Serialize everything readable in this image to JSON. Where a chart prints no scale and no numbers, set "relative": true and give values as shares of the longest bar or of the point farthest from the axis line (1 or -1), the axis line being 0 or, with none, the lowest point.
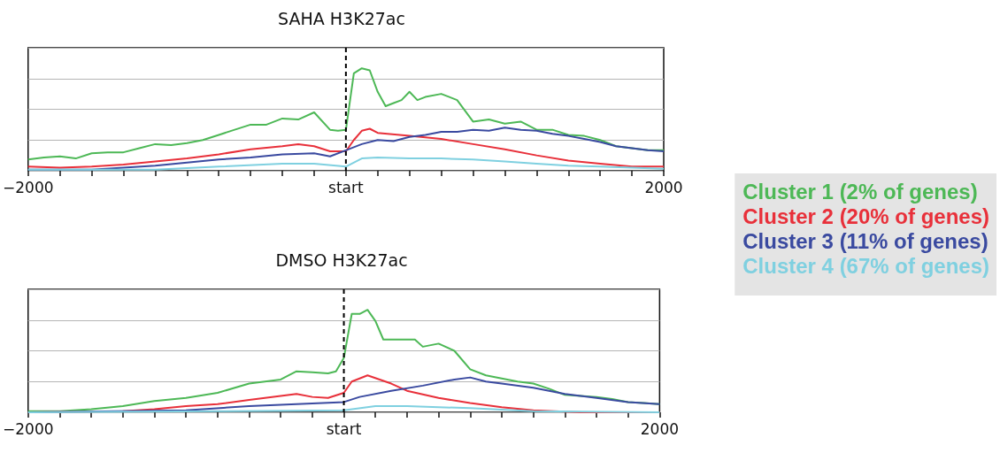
{
  "chart_data": [
    {
      "type": "line",
      "title": "SAHA H3K27ac",
      "relative": true,
      "grid": "y",
      "legend": "right",
      "xlim": [
        -2000,
        2000
      ],
      "xticks": [
        {
          "value": -2000,
          "label": "−2000"
        },
        {
          "value": -1800,
          "label": null
        },
        {
          "value": -1600,
          "label": null
        },
        {
          "value": -1400,
          "label": null
        },
        {
          "value": -1200,
          "label": null
        },
        {
          "value": -1000,
          "label": null
        },
        {
          "value": -800,
          "label": null
        },
        {
          "value": -600,
          "label": null
        },
        {
          "value": -400,
          "label": null
        },
        {
          "value": -200,
          "label": null
        },
        {
          "value": 0,
          "label": "start"
        },
        {
          "value": 200,
          "label": null
        },
        {
          "value": 400,
          "label": null
        },
        {
          "value": 600,
          "label": null
        },
        {
          "value": 800,
          "label": null
        },
        {
          "value": 1000,
          "label": null
        },
        {
          "value": 1200,
          "label": null
        },
        {
          "value": 1400,
          "label": null
        },
        {
          "value": 1600,
          "label": null
        },
        {
          "value": 1800,
          "label": null
        },
        {
          "value": 2000,
          "label": "2000"
        }
      ],
      "ref_lines": [
        {
          "axis": "x",
          "value": 0,
          "color": "#000000",
          "line_style": "dashed"
        }
      ],
      "series": [
        {
          "name": "Cluster 1 (2% of genes)",
          "color": "#4db856",
          "x": [
            -2000,
            -1900,
            -1800,
            -1700,
            -1600,
            -1500,
            -1400,
            -1300,
            -1200,
            -1100,
            -1000,
            -900,
            -800,
            -700,
            -600,
            -500,
            -400,
            -300,
            -200,
            -100,
            -50,
            0,
            20,
            50,
            100,
            150,
            200,
            250,
            300,
            350,
            400,
            450,
            500,
            600,
            700,
            800,
            900,
            1000,
            1100,
            1200,
            1300,
            1400,
            1500,
            1600,
            1700,
            1800,
            1900,
            2000
          ],
          "values": [
            0.11,
            0.13,
            0.14,
            0.12,
            0.17,
            0.18,
            0.18,
            0.22,
            0.26,
            0.25,
            0.27,
            0.3,
            0.35,
            0.4,
            0.45,
            0.45,
            0.51,
            0.5,
            0.57,
            0.4,
            0.39,
            0.4,
            0.62,
            0.95,
            1,
            0.98,
            0.77,
            0.63,
            0.66,
            0.69,
            0.77,
            0.69,
            0.72,
            0.75,
            0.69,
            0.48,
            0.5,
            0.46,
            0.48,
            0.4,
            0.4,
            0.35,
            0.34,
            0.3,
            0.24,
            0.22,
            0.2,
            0.2
          ]
        },
        {
          "name": "Cluster 2 (20% of genes)",
          "color": "#e8303a",
          "x": [
            -2000,
            -1800,
            -1600,
            -1400,
            -1200,
            -1000,
            -800,
            -600,
            -400,
            -300,
            -200,
            -100,
            0,
            50,
            100,
            150,
            200,
            400,
            600,
            800,
            1000,
            1200,
            1400,
            1600,
            1800,
            2000
          ],
          "values": [
            0.04,
            0.03,
            0.04,
            0.06,
            0.09,
            0.12,
            0.16,
            0.21,
            0.24,
            0.26,
            0.24,
            0.19,
            0.19,
            0.3,
            0.39,
            0.41,
            0.37,
            0.34,
            0.31,
            0.26,
            0.21,
            0.15,
            0.1,
            0.07,
            0.04,
            0.04
          ]
        },
        {
          "name": "Cluster 3 (11% of genes)",
          "color": "#3a4aa0",
          "x": [
            -2000,
            -1600,
            -1400,
            -1200,
            -1000,
            -800,
            -600,
            -400,
            -200,
            -100,
            0,
            100,
            200,
            300,
            400,
            500,
            600,
            700,
            800,
            900,
            1000,
            1100,
            1200,
            1300,
            1400,
            1500,
            1600,
            1700,
            1800,
            1900,
            2000
          ],
          "values": [
            0.01,
            0.01,
            0.03,
            0.05,
            0.08,
            0.11,
            0.13,
            0.16,
            0.17,
            0.14,
            0.2,
            0.26,
            0.3,
            0.29,
            0.33,
            0.35,
            0.38,
            0.38,
            0.4,
            0.39,
            0.42,
            0.4,
            0.39,
            0.36,
            0.34,
            0.31,
            0.28,
            0.24,
            0.22,
            0.2,
            0.19
          ]
        },
        {
          "name": "Cluster 4 (67% of genes)",
          "color": "#7fd0e0",
          "x": [
            -2000,
            -1200,
            -800,
            -400,
            -200,
            0,
            100,
            200,
            400,
            600,
            800,
            1000,
            1200,
            1400,
            1600,
            1800,
            2000
          ],
          "values": [
            0.01,
            0.01,
            0.04,
            0.07,
            0.07,
            0.04,
            0.12,
            0.13,
            0.12,
            0.12,
            0.11,
            0.09,
            0.07,
            0.05,
            0.04,
            0.03,
            0.02
          ]
        }
      ]
    },
    {
      "type": "line",
      "title": "DMSO H3K27ac",
      "relative": true,
      "grid": "y",
      "xlim": [
        -2000,
        2000
      ],
      "xticks": [
        {
          "value": -2000,
          "label": "−2000"
        },
        {
          "value": -1800,
          "label": null
        },
        {
          "value": -1600,
          "label": null
        },
        {
          "value": -1400,
          "label": null
        },
        {
          "value": -1200,
          "label": null
        },
        {
          "value": -1000,
          "label": null
        },
        {
          "value": -800,
          "label": null
        },
        {
          "value": -600,
          "label": null
        },
        {
          "value": -400,
          "label": null
        },
        {
          "value": -200,
          "label": null
        },
        {
          "value": 0,
          "label": "start"
        },
        {
          "value": 200,
          "label": null
        },
        {
          "value": 400,
          "label": null
        },
        {
          "value": 600,
          "label": null
        },
        {
          "value": 800,
          "label": null
        },
        {
          "value": 1000,
          "label": null
        },
        {
          "value": 1200,
          "label": null
        },
        {
          "value": 1400,
          "label": null
        },
        {
          "value": 1600,
          "label": null
        },
        {
          "value": 1800,
          "label": null
        },
        {
          "value": 2000,
          "label": "2000"
        }
      ],
      "ref_lines": [
        {
          "axis": "x",
          "value": 0,
          "color": "#000000",
          "line_style": "dashed"
        }
      ],
      "series": [
        {
          "color": "#4db856",
          "x": [
            -2000,
            -1800,
            -1600,
            -1400,
            -1200,
            -1000,
            -800,
            -600,
            -400,
            -300,
            -200,
            -100,
            -50,
            0,
            50,
            100,
            150,
            200,
            250,
            350,
            450,
            500,
            600,
            700,
            800,
            900,
            1000,
            1100,
            1200,
            1300,
            1400,
            1500,
            1600,
            1700,
            1800,
            1900,
            2000
          ],
          "values": [
            0.01,
            0.01,
            0.03,
            0.06,
            0.11,
            0.14,
            0.19,
            0.28,
            0.32,
            0.4,
            0.39,
            0.38,
            0.4,
            0.53,
            0.96,
            0.96,
            1,
            0.89,
            0.71,
            0.71,
            0.71,
            0.64,
            0.67,
            0.6,
            0.42,
            0.36,
            0.33,
            0.3,
            0.28,
            0.23,
            0.17,
            0.16,
            0.15,
            0.13,
            0.1,
            0.09,
            0.08
          ]
        },
        {
          "color": "#e8303a",
          "x": [
            -2000,
            -1400,
            -1200,
            -1000,
            -800,
            -600,
            -400,
            -300,
            -200,
            -100,
            0,
            50,
            150,
            300,
            400,
            600,
            800,
            1000,
            1200,
            1500,
            2000
          ],
          "values": [
            0,
            0.01,
            0.03,
            0.06,
            0.08,
            0.12,
            0.16,
            0.18,
            0.15,
            0.14,
            0.19,
            0.3,
            0.36,
            0.28,
            0.21,
            0.14,
            0.09,
            0.05,
            0.02,
            0,
            0
          ]
        },
        {
          "color": "#3a4aa0",
          "x": [
            -2000,
            -1000,
            -600,
            -300,
            0,
            100,
            300,
            500,
            700,
            800,
            900,
            1000,
            1200,
            1400,
            1600,
            1800,
            2000
          ],
          "values": [
            0,
            0.02,
            0.06,
            0.08,
            0.1,
            0.15,
            0.21,
            0.26,
            0.32,
            0.34,
            0.3,
            0.28,
            0.24,
            0.18,
            0.14,
            0.1,
            0.08
          ]
        },
        {
          "color": "#7fd0e0",
          "x": [
            -2000,
            -800,
            0,
            200,
            400,
            800,
            1200,
            2000
          ],
          "values": [
            0,
            0.01,
            0.02,
            0.06,
            0.06,
            0.04,
            0.01,
            0
          ]
        }
      ]
    }
  ]
}
